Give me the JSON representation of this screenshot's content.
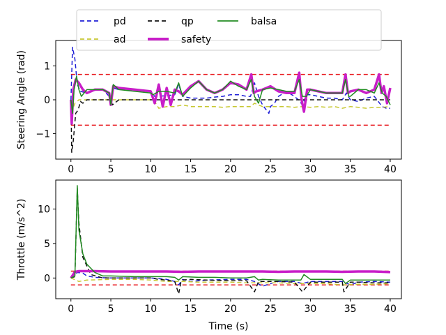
{
  "chart_data": [
    {
      "type": "line",
      "ylabel": "Steering Angle (rad)",
      "xlabel": "",
      "xlim": [
        -1.9,
        41.4
      ],
      "ylim": [
        -1.75,
        1.75
      ],
      "xticks": [
        0,
        5,
        10,
        15,
        20,
        25,
        30,
        35,
        40
      ],
      "yticks": [
        -1,
        0,
        1
      ],
      "grid": false,
      "legend": {
        "placement": "top-center, above the plots",
        "entries": [
          {
            "name": "pd",
            "color": "#1f1fd6",
            "style": "dashed"
          },
          {
            "name": "ad",
            "color": "#c8c832",
            "style": "dashed"
          },
          {
            "name": "qp",
            "color": "#111111",
            "style": "dashed"
          },
          {
            "name": "safety",
            "color": "#c81ec8",
            "style": "solid-thick"
          },
          {
            "name": "balsa",
            "color": "#228b22",
            "style": "solid"
          }
        ]
      },
      "reference_lines": [
        {
          "y": 0.75,
          "color": "#e8151b",
          "style": "dashed"
        },
        {
          "y": -0.75,
          "color": "#e8151b",
          "style": "dashed"
        }
      ],
      "series": [
        {
          "name": "pd",
          "color": "#1f1fd6",
          "dash": "6,4",
          "width": 1.5,
          "x": [
            0,
            0.2,
            0.5,
            0.8,
            1.2,
            2,
            3,
            4,
            4.8,
            5,
            5.3,
            6,
            8,
            10,
            10.5,
            12,
            13,
            13.5,
            14,
            15,
            16,
            17,
            18,
            19,
            20,
            21,
            22,
            22.5,
            23,
            23.5,
            24,
            24.8,
            25,
            25.5,
            26,
            27,
            28,
            28.5,
            29,
            29.5,
            30,
            31,
            32,
            33,
            34,
            34.5,
            35,
            36,
            37,
            38,
            39,
            39.5,
            40
          ],
          "y": [
            0,
            1.55,
            1.2,
            0.45,
            0.25,
            0.2,
            0.28,
            0.3,
            0.1,
            -0.1,
            0.35,
            0.3,
            0.28,
            0.25,
            0.1,
            0.12,
            0.15,
            0.45,
            0.1,
            0.05,
            0.05,
            0.05,
            0.08,
            0.1,
            0.15,
            0.15,
            0.1,
            0.1,
            0.5,
            0.1,
            -0.15,
            -0.4,
            -0.2,
            -0.1,
            0.1,
            0.25,
            0.1,
            0.0,
            -0.15,
            0.15,
            0.15,
            0.1,
            0.05,
            0.05,
            0.0,
            0.2,
            0.0,
            -0.05,
            0.05,
            0.1,
            -0.2,
            -0.25,
            -0.25
          ]
        },
        {
          "name": "ad",
          "color": "#c8c832",
          "dash": "6,4",
          "width": 1.5,
          "x": [
            0,
            0.2,
            0.5,
            1,
            2,
            4,
            6,
            8,
            10,
            10.5,
            11,
            12,
            13,
            14,
            15,
            16,
            17,
            18,
            19,
            20,
            21,
            22,
            22.5,
            23,
            24,
            25,
            26,
            27,
            28,
            29,
            30,
            31,
            32,
            33,
            34,
            35,
            36,
            37,
            38,
            39,
            40
          ],
          "y": [
            0,
            -0.3,
            -0.1,
            0,
            0,
            0,
            0,
            0,
            0,
            -0.05,
            -0.25,
            -0.2,
            -0.2,
            -0.15,
            -0.2,
            -0.2,
            -0.2,
            -0.2,
            -0.22,
            -0.2,
            -0.2,
            -0.2,
            -0.2,
            -0.1,
            -0.2,
            -0.2,
            -0.2,
            -0.2,
            -0.22,
            -0.2,
            -0.22,
            -0.2,
            -0.22,
            -0.2,
            -0.25,
            -0.2,
            -0.22,
            -0.25,
            -0.22,
            -0.22,
            -0.2
          ]
        },
        {
          "name": "qp",
          "color": "#111111",
          "dash": "6,4",
          "width": 1.5,
          "x": [
            0,
            0.1,
            0.3,
            0.6,
            0.9,
            1.2,
            1.5,
            2,
            3,
            4,
            5,
            5.2,
            6,
            8,
            10,
            12,
            14,
            16,
            18,
            20,
            22,
            24,
            26,
            28,
            30,
            32,
            34,
            36,
            38,
            40
          ],
          "y": [
            0,
            -1.55,
            -1.2,
            -0.4,
            -0.3,
            -0.05,
            -0.1,
            0,
            0,
            0,
            0,
            -0.15,
            0,
            0,
            0,
            0,
            0,
            0,
            0,
            0,
            0,
            0,
            0,
            0,
            0,
            0,
            0,
            0,
            0,
            0
          ]
        },
        {
          "name": "safety",
          "color": "#c81ec8",
          "dash": "",
          "width": 3.5,
          "x": [
            0,
            0.1,
            0.3,
            0.6,
            1,
            1.5,
            2,
            3,
            4,
            4.8,
            5,
            5.3,
            6,
            8,
            10,
            10.5,
            11,
            11.5,
            12,
            12.5,
            13,
            13.5,
            14,
            15,
            16,
            17,
            18,
            19,
            20,
            21,
            22,
            22.6,
            22.9,
            23.2,
            24,
            25,
            26,
            27,
            28,
            28.6,
            28.9,
            29.2,
            29.6,
            30,
            31,
            32,
            33,
            34,
            34.4,
            34.7,
            35,
            36,
            37,
            38,
            38.6,
            38.9,
            39.2,
            39.6,
            40
          ],
          "y": [
            0,
            -0.7,
            0.3,
            0.6,
            0.5,
            0.3,
            0.2,
            0.3,
            0.3,
            0.2,
            -0.15,
            0.4,
            0.35,
            0.3,
            0.25,
            -0.1,
            0.45,
            -0.2,
            0.35,
            -0.15,
            0.3,
            0.25,
            0.15,
            0.4,
            0.55,
            0.3,
            0.2,
            0.3,
            0.5,
            0.45,
            0.3,
            0.75,
            0.2,
            0.25,
            0.3,
            0.4,
            0.25,
            0.2,
            0.2,
            0.8,
            0.0,
            -0.35,
            0.3,
            0.3,
            0.25,
            0.2,
            0.2,
            0.2,
            0.75,
            0.2,
            0.25,
            0.3,
            0.2,
            0.3,
            0.75,
            0.2,
            0.4,
            -0.1,
            0.35
          ]
        },
        {
          "name": "balsa",
          "color": "#228b22",
          "dash": "",
          "width": 1.5,
          "x": [
            0,
            0.2,
            0.4,
            0.7,
            1,
            1.3,
            2,
            3,
            4,
            4.8,
            5,
            5.3,
            6,
            8,
            10,
            10.3,
            11,
            12,
            13,
            13.5,
            14,
            15,
            16,
            17,
            18,
            19,
            20,
            21,
            22,
            22.6,
            23,
            23.5,
            24,
            25,
            26,
            27,
            28,
            28.6,
            29,
            29.5,
            30,
            31,
            32,
            33,
            34,
            34.4,
            34.8,
            35,
            36,
            37,
            38,
            38.6,
            39,
            39.5,
            40
          ],
          "y": [
            0,
            -0.4,
            0.3,
            0.7,
            0.3,
            0.1,
            0.3,
            0.3,
            0.3,
            0.2,
            -0.15,
            0.45,
            0.3,
            0.25,
            0.2,
            0.15,
            0.25,
            0.25,
            0.2,
            0.5,
            0.1,
            0.35,
            0.55,
            0.3,
            0.2,
            0.3,
            0.55,
            0.4,
            0.3,
            0.6,
            0.1,
            -0.1,
            0.3,
            0.35,
            0.3,
            0.25,
            0.25,
            0.6,
            0.1,
            0.1,
            0.3,
            0.25,
            0.2,
            0.2,
            0.2,
            0.6,
            0.1,
            0.1,
            0.3,
            0.3,
            0.2,
            0.5,
            0.2,
            0.1,
            -0.15
          ]
        }
      ]
    },
    {
      "type": "line",
      "ylabel": "Throttle (m/s^2)",
      "xlabel": "Time (s)",
      "xlim": [
        -1.9,
        41.4
      ],
      "ylim": [
        -3.0,
        14.2
      ],
      "xticks": [
        0,
        5,
        10,
        15,
        20,
        25,
        30,
        35,
        40
      ],
      "yticks": [
        0,
        5,
        10
      ],
      "grid": false,
      "reference_lines": [
        {
          "y": 1.0,
          "color": "#e8151b",
          "style": "dashed"
        },
        {
          "y": -1.0,
          "color": "#e8151b",
          "style": "dashed"
        }
      ],
      "series": [
        {
          "name": "pd",
          "color": "#1f1fd6",
          "dash": "6,4",
          "width": 1.5,
          "x": [
            0,
            0.5,
            0.8,
            1.5,
            2,
            3,
            5,
            8,
            10,
            11,
            12,
            13,
            13.5,
            14,
            15,
            17,
            20,
            22,
            23,
            24,
            25,
            26,
            28,
            29,
            30,
            32,
            34,
            35,
            36,
            38,
            40
          ],
          "y": [
            0,
            0.5,
            0.8,
            0.7,
            0.3,
            0.1,
            0,
            0,
            0,
            -0.1,
            -0.2,
            -0.5,
            -1.0,
            -0.2,
            -0.5,
            -0.3,
            -0.2,
            -0.2,
            -0.5,
            -1.2,
            -0.8,
            -0.5,
            -0.5,
            -0.8,
            -0.5,
            -0.5,
            -0.5,
            -1.0,
            -0.6,
            -0.5,
            -0.6
          ]
        },
        {
          "name": "ad",
          "color": "#c8c832",
          "dash": "6,4",
          "width": 1.5,
          "x": [
            0,
            1,
            2,
            5,
            8,
            10,
            12,
            14,
            16,
            18,
            20,
            22,
            24,
            26,
            28,
            30,
            32,
            34,
            36,
            38,
            40
          ],
          "y": [
            0,
            -0.5,
            -0.3,
            -0.2,
            -0.2,
            -0.3,
            -0.5,
            -0.5,
            -0.6,
            -0.6,
            -0.6,
            -0.7,
            -0.7,
            -0.7,
            -0.8,
            -0.8,
            -0.8,
            -1.0,
            -0.9,
            -0.9,
            -0.8
          ]
        },
        {
          "name": "qp",
          "color": "#111111",
          "dash": "6,4",
          "width": 1.5,
          "x": [
            0,
            0.5,
            0.8,
            1,
            1.5,
            2.5,
            4,
            5,
            8,
            10,
            11,
            12,
            13,
            13.5,
            13.8,
            14,
            15,
            17,
            20,
            22,
            23,
            23.5,
            24,
            26,
            28,
            29,
            30,
            32,
            34,
            34.2,
            35,
            36,
            38,
            40
          ],
          "y": [
            0,
            0.2,
            13.0,
            8,
            3,
            0.5,
            0,
            0,
            0,
            0,
            -0.2,
            -0.3,
            -0.5,
            -2.3,
            -0.5,
            -0.3,
            -0.2,
            -0.3,
            -0.4,
            -0.4,
            -2.0,
            -0.5,
            -0.5,
            -0.5,
            -0.6,
            -2.0,
            -0.6,
            -0.6,
            -0.6,
            -2.0,
            -0.6,
            -0.6,
            -0.7,
            -0.7
          ]
        },
        {
          "name": "safety",
          "color": "#c81ec8",
          "dash": "",
          "width": 3.5,
          "x": [
            0,
            0.5,
            1,
            3,
            5,
            8,
            10,
            12,
            14,
            16,
            18,
            20,
            22,
            24,
            26,
            28,
            30,
            32,
            34,
            36,
            38,
            40
          ],
          "y": [
            0,
            0.9,
            1.0,
            1.0,
            0.95,
            0.95,
            0.95,
            0.95,
            0.9,
            0.95,
            0.95,
            0.95,
            0.95,
            0.95,
            0.9,
            0.95,
            0.95,
            0.95,
            0.9,
            0.95,
            0.95,
            0.85
          ]
        },
        {
          "name": "balsa",
          "color": "#228b22",
          "dash": "",
          "width": 1.5,
          "x": [
            0,
            0.5,
            0.8,
            1,
            1.5,
            2,
            3,
            4,
            5,
            8,
            10,
            12,
            13,
            13.5,
            14,
            16,
            18,
            20,
            22,
            23,
            23.5,
            24,
            26,
            28,
            28.8,
            29.2,
            30,
            32,
            34,
            34.4,
            35,
            36,
            38,
            40
          ],
          "y": [
            0,
            0.3,
            13.4,
            7,
            3.5,
            2,
            0.8,
            0.3,
            0.3,
            0.2,
            0.2,
            0.2,
            0.1,
            -0.3,
            0.2,
            0.1,
            0.1,
            0,
            0,
            0.2,
            -0.3,
            -0.2,
            -0.3,
            -0.3,
            -0.3,
            0.5,
            -0.2,
            -0.2,
            -0.2,
            -0.8,
            -0.3,
            -0.3,
            -0.3,
            -0.3
          ]
        }
      ]
    }
  ]
}
